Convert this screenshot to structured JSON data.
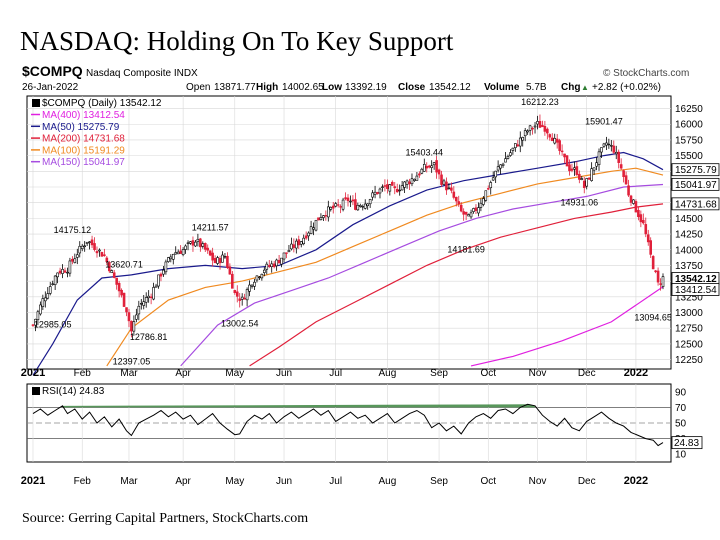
{
  "headline": "NASDAQ: Holding On To Key Support",
  "source": "Source: Gerring Capital Partners, StockCharts.com",
  "chart_data": [
    {
      "type": "candlestick",
      "symbol": "$COMPQ",
      "description": "Nasdaq Composite INDX",
      "watermark": "© StockCharts.com",
      "quote": {
        "date": "26-Jan-2022",
        "open_label": "Open",
        "open": "13871.77",
        "high_label": "High",
        "high": "14002.65",
        "low_label": "Low",
        "low": "13392.19",
        "close_label": "Close",
        "close": "13542.12",
        "volume_label": "Volume",
        "volume": "5.7B",
        "chg_label": "Chg",
        "chg": "+2.82 (+0.02%)",
        "chg_arrow": "▲"
      },
      "legend_title": "$COMPQ (Daily) 13542.12",
      "legend": [
        {
          "text": "MA(400) 13412.54",
          "color": "#e020e0"
        },
        {
          "text": "MA(50) 15275.79",
          "color": "#1a1a8c"
        },
        {
          "text": "MA(200) 14731.68",
          "color": "#e0203a"
        },
        {
          "text": "MA(100) 15191.29",
          "color": "#f08a20"
        },
        {
          "text": "MA(150) 15041.97",
          "color": "#a64ce0"
        }
      ],
      "ylim": [
        12100,
        16450
      ],
      "yticks": [
        "12250",
        "12500",
        "12750",
        "13000",
        "13250",
        "13500",
        "13750",
        "14000",
        "14250",
        "14500",
        "14750",
        "15000",
        "15250",
        "15500",
        "15750",
        "16000",
        "16250"
      ],
      "months": [
        {
          "t": "2021",
          "x": 0,
          "bold": true
        },
        {
          "t": "Feb",
          "x": 20
        },
        {
          "t": "Mar",
          "x": 39
        },
        {
          "t": "Apr",
          "x": 61
        },
        {
          "t": "May",
          "x": 82
        },
        {
          "t": "Jun",
          "x": 102
        },
        {
          "t": "Jul",
          "x": 123
        },
        {
          "t": "Aug",
          "x": 144
        },
        {
          "t": "Sep",
          "x": 165
        },
        {
          "t": "Oct",
          "x": 185
        },
        {
          "t": "Nov",
          "x": 205
        },
        {
          "t": "Dec",
          "x": 225
        },
        {
          "t": "2022",
          "x": 245,
          "bold": true
        }
      ],
      "price_anchors": [
        [
          0,
          12800
        ],
        [
          4,
          13200
        ],
        [
          10,
          13650
        ],
        [
          14,
          13700
        ],
        [
          18,
          13950
        ],
        [
          22,
          14150
        ],
        [
          25,
          14050
        ],
        [
          29,
          13900
        ],
        [
          34,
          13450
        ],
        [
          38,
          13050
        ],
        [
          40,
          12700
        ],
        [
          43,
          13100
        ],
        [
          48,
          13300
        ],
        [
          53,
          13700
        ],
        [
          57,
          13950
        ],
        [
          61,
          14000
        ],
        [
          66,
          14150
        ],
        [
          70,
          14000
        ],
        [
          74,
          13800
        ],
        [
          78,
          13900
        ],
        [
          82,
          13300
        ],
        [
          85,
          13200
        ],
        [
          89,
          13500
        ],
        [
          94,
          13700
        ],
        [
          99,
          13800
        ],
        [
          104,
          14000
        ],
        [
          109,
          14150
        ],
        [
          113,
          14350
        ],
        [
          117,
          14550
        ],
        [
          121,
          14650
        ],
        [
          125,
          14700
        ],
        [
          128,
          14800
        ],
        [
          131,
          14700
        ],
        [
          135,
          14750
        ],
        [
          139,
          14900
        ],
        [
          143,
          15000
        ],
        [
          147,
          14950
        ],
        [
          151,
          15050
        ],
        [
          155,
          15150
        ],
        [
          159,
          15300
        ],
        [
          163,
          15350
        ],
        [
          166,
          15100
        ],
        [
          170,
          14900
        ],
        [
          174,
          14600
        ],
        [
          177,
          14500
        ],
        [
          181,
          14700
        ],
        [
          185,
          15000
        ],
        [
          189,
          15300
        ],
        [
          193,
          15500
        ],
        [
          197,
          15700
        ],
        [
          201,
          15900
        ],
        [
          205,
          16000
        ],
        [
          208,
          15950
        ],
        [
          211,
          15800
        ],
        [
          215,
          15500
        ],
        [
          218,
          15300
        ],
        [
          221,
          15250
        ],
        [
          224,
          15000
        ],
        [
          227,
          15250
        ],
        [
          230,
          15500
        ],
        [
          233,
          15700
        ],
        [
          236,
          15600
        ],
        [
          239,
          15300
        ],
        [
          242,
          14900
        ],
        [
          245,
          14650
        ],
        [
          248,
          14400
        ],
        [
          251,
          13900
        ],
        [
          254,
          13450
        ],
        [
          256,
          13550
        ]
      ],
      "candles": [
        {
          "x": 145,
          "o": 14850,
          "c": 14700,
          "h": 14900,
          "l": 14600
        },
        {
          "x": 146,
          "o": 14700,
          "c": 14900,
          "h": 14950,
          "l": 14650
        }
      ],
      "ma_series": [
        {
          "name": "MA(400)",
          "color": "#e020e0",
          "points": [
            [
              178,
              12150
            ],
            [
              195,
              12300
            ],
            [
              215,
              12550
            ],
            [
              235,
              12850
            ],
            [
              256,
              13410
            ]
          ]
        },
        {
          "name": "MA(50)",
          "color": "#1a1a8c",
          "points": [
            [
              0,
              12000
            ],
            [
              8,
              12500
            ],
            [
              18,
              13200
            ],
            [
              28,
              13550
            ],
            [
              40,
              13600
            ],
            [
              55,
              13700
            ],
            [
              70,
              13750
            ],
            [
              85,
              13700
            ],
            [
              100,
              13750
            ],
            [
              115,
              14000
            ],
            [
              130,
              14400
            ],
            [
              145,
              14700
            ],
            [
              160,
              14950
            ],
            [
              175,
              15100
            ],
            [
              190,
              15200
            ],
            [
              205,
              15300
            ],
            [
              220,
              15400
            ],
            [
              232,
              15500
            ],
            [
              240,
              15550
            ],
            [
              248,
              15450
            ],
            [
              256,
              15275
            ]
          ]
        },
        {
          "name": "MA(100)",
          "color": "#f08a20",
          "points": [
            [
              30,
              12150
            ],
            [
              40,
              12750
            ],
            [
              55,
              13200
            ],
            [
              70,
              13400
            ],
            [
              85,
              13500
            ],
            [
              100,
              13650
            ],
            [
              115,
              13800
            ],
            [
              130,
              14050
            ],
            [
              145,
              14300
            ],
            [
              160,
              14550
            ],
            [
              175,
              14750
            ],
            [
              190,
              14900
            ],
            [
              205,
              15050
            ],
            [
              220,
              15150
            ],
            [
              235,
              15250
            ],
            [
              245,
              15300
            ],
            [
              256,
              15190
            ]
          ]
        },
        {
          "name": "MA(150)",
          "color": "#a64ce0",
          "points": [
            [
              60,
              12150
            ],
            [
              75,
              12800
            ],
            [
              90,
              13150
            ],
            [
              105,
              13350
            ],
            [
              120,
              13550
            ],
            [
              135,
              13800
            ],
            [
              150,
              14050
            ],
            [
              165,
              14300
            ],
            [
              180,
              14500
            ],
            [
              195,
              14650
            ],
            [
              210,
              14750
            ],
            [
              225,
              14850
            ],
            [
              240,
              15000
            ],
            [
              256,
              15040
            ]
          ]
        },
        {
          "name": "MA(200)",
          "color": "#e0203a",
          "points": [
            [
              88,
              12150
            ],
            [
              100,
              12450
            ],
            [
              115,
              12850
            ],
            [
              130,
              13150
            ],
            [
              145,
              13450
            ],
            [
              160,
              13750
            ],
            [
              175,
              14000
            ],
            [
              190,
              14200
            ],
            [
              205,
              14350
            ],
            [
              220,
              14500
            ],
            [
              235,
              14600
            ],
            [
              245,
              14680
            ],
            [
              256,
              14730
            ]
          ]
        }
      ],
      "annotations": [
        {
          "t": "14175.12",
          "x": 16,
          "v": 14175.12,
          "pos": "above"
        },
        {
          "t": "13620.71",
          "x": 37,
          "v": 13620.71,
          "pos": "above"
        },
        {
          "t": "14211.57",
          "x": 72,
          "v": 14211.57,
          "pos": "above"
        },
        {
          "t": "12985.05",
          "x": 8,
          "v": 12985.05,
          "pos": "below"
        },
        {
          "t": "12786.81",
          "x": 47,
          "v": 12786.81,
          "pos": "below"
        },
        {
          "t": "12397.05",
          "x": 40,
          "v": 12397.05,
          "pos": "below"
        },
        {
          "t": "13002.54",
          "x": 84,
          "v": 13002.54,
          "pos": "below"
        },
        {
          "t": "15403.44",
          "x": 159,
          "v": 15403.44,
          "pos": "above"
        },
        {
          "t": "16212.23",
          "x": 206,
          "v": 16212.23,
          "pos": "above"
        },
        {
          "t": "15901.47",
          "x": 232,
          "v": 15901.47,
          "pos": "above"
        },
        {
          "t": "14931.06",
          "x": 222,
          "v": 14931.06,
          "pos": "below"
        },
        {
          "t": "14181.69",
          "x": 176,
          "v": 14181.69,
          "pos": "below"
        },
        {
          "t": "13094.65",
          "x": 252,
          "v": 13094.65,
          "pos": "below"
        }
      ],
      "right_tags": [
        {
          "t": "15275.79",
          "v": 15275.79,
          "bold": false
        },
        {
          "t": "15041.97",
          "v": 15041.97,
          "bold": false
        },
        {
          "t": "14731.68",
          "v": 14731.68,
          "bold": false
        },
        {
          "t": "13542.12",
          "v": 13542.12,
          "bold": true
        },
        {
          "t": "13412.54",
          "v": 13412.54,
          "bold": false
        }
      ],
      "colors": {
        "up": "#000000",
        "down": "#e0203a",
        "grid": "#d8d8d8"
      }
    },
    {
      "type": "line",
      "label": "RSI(14) 24.83",
      "ylim": [
        0,
        100
      ],
      "yticks": [
        "10",
        "30",
        "50",
        "70",
        "90"
      ],
      "levels": [
        70,
        30
      ],
      "midline": 50,
      "last": "24.83",
      "overbought_fill": "#2e7d32",
      "points": [
        [
          0,
          62
        ],
        [
          3,
          68
        ],
        [
          6,
          60
        ],
        [
          9,
          66
        ],
        [
          12,
          72
        ],
        [
          14,
          62
        ],
        [
          17,
          68
        ],
        [
          20,
          55
        ],
        [
          23,
          64
        ],
        [
          26,
          50
        ],
        [
          29,
          58
        ],
        [
          32,
          45
        ],
        [
          35,
          55
        ],
        [
          38,
          40
        ],
        [
          40,
          34
        ],
        [
          43,
          50
        ],
        [
          46,
          55
        ],
        [
          49,
          60
        ],
        [
          52,
          66
        ],
        [
          55,
          58
        ],
        [
          58,
          64
        ],
        [
          61,
          55
        ],
        [
          64,
          60
        ],
        [
          67,
          48
        ],
        [
          70,
          55
        ],
        [
          73,
          62
        ],
        [
          76,
          50
        ],
        [
          79,
          42
        ],
        [
          82,
          35
        ],
        [
          84,
          36
        ],
        [
          87,
          52
        ],
        [
          90,
          60
        ],
        [
          93,
          55
        ],
        [
          96,
          62
        ],
        [
          99,
          50
        ],
        [
          102,
          58
        ],
        [
          105,
          64
        ],
        [
          108,
          56
        ],
        [
          111,
          62
        ],
        [
          114,
          68
        ],
        [
          117,
          60
        ],
        [
          120,
          66
        ],
        [
          123,
          52
        ],
        [
          126,
          58
        ],
        [
          129,
          64
        ],
        [
          132,
          56
        ],
        [
          135,
          60
        ],
        [
          138,
          50
        ],
        [
          141,
          56
        ],
        [
          144,
          62
        ],
        [
          147,
          50
        ],
        [
          150,
          56
        ],
        [
          153,
          62
        ],
        [
          156,
          66
        ],
        [
          159,
          60
        ],
        [
          162,
          44
        ],
        [
          165,
          50
        ],
        [
          168,
          40
        ],
        [
          171,
          46
        ],
        [
          174,
          36
        ],
        [
          177,
          50
        ],
        [
          180,
          58
        ],
        [
          183,
          62
        ],
        [
          186,
          56
        ],
        [
          189,
          66
        ],
        [
          192,
          68
        ],
        [
          195,
          62
        ],
        [
          198,
          70
        ],
        [
          201,
          74
        ],
        [
          204,
          72
        ],
        [
          207,
          60
        ],
        [
          210,
          52
        ],
        [
          213,
          46
        ],
        [
          216,
          56
        ],
        [
          219,
          44
        ],
        [
          222,
          40
        ],
        [
          225,
          52
        ],
        [
          228,
          58
        ],
        [
          231,
          64
        ],
        [
          234,
          56
        ],
        [
          237,
          50
        ],
        [
          240,
          46
        ],
        [
          243,
          38
        ],
        [
          246,
          34
        ],
        [
          249,
          30
        ],
        [
          252,
          28
        ],
        [
          254,
          21
        ],
        [
          256,
          24.83
        ]
      ]
    }
  ]
}
